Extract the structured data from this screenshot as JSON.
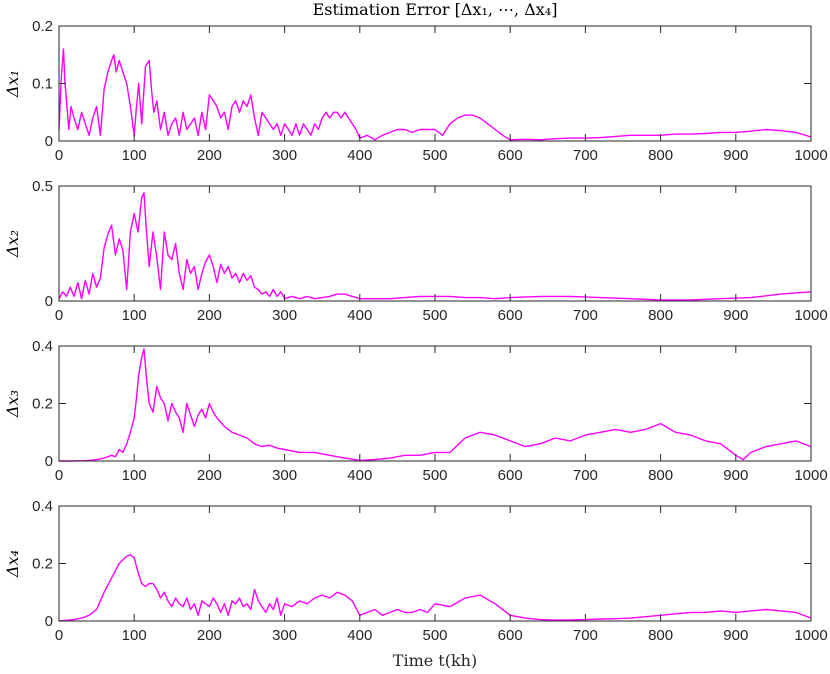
{
  "figure_title": "Estimation Error [Δx₁, ⋯, Δx₄]",
  "xlabel": "Time t(kh)",
  "colors": {
    "trace": "#ff00ff",
    "axes": "#262626",
    "background": "#ffffff"
  },
  "chart_data": [
    {
      "type": "line",
      "title": "Estimation Error [Δx₁, ⋯, Δx₄]",
      "ylabel": "Δx₁",
      "xlabel": "",
      "xlim": [
        0,
        1000
      ],
      "ylim": [
        0,
        0.2
      ],
      "xticks": [
        0,
        100,
        200,
        300,
        400,
        500,
        600,
        700,
        800,
        900,
        1000
      ],
      "yticks": [
        0,
        0.1,
        0.2
      ],
      "ytick_labels": [
        "0",
        "0.1",
        "0.2"
      ],
      "series": [
        {
          "x": [
            0,
            3,
            6,
            8,
            10,
            13,
            16,
            20,
            25,
            30,
            35,
            40,
            45,
            50,
            55,
            60,
            65,
            70,
            73,
            76,
            80,
            85,
            90,
            95,
            100,
            103,
            106,
            110,
            115,
            120,
            123,
            126,
            130,
            135,
            140,
            145,
            150,
            155,
            160,
            165,
            170,
            175,
            180,
            185,
            190,
            195,
            200,
            205,
            210,
            215,
            220,
            225,
            230,
            235,
            240,
            245,
            250,
            255,
            260,
            265,
            270,
            275,
            280,
            285,
            290,
            295,
            300,
            305,
            310,
            315,
            320,
            325,
            330,
            335,
            340,
            345,
            350,
            355,
            360,
            365,
            370,
            375,
            380,
            385,
            390,
            395,
            400,
            410,
            420,
            430,
            440,
            450,
            460,
            470,
            480,
            490,
            500,
            510,
            520,
            530,
            540,
            550,
            560,
            570,
            580,
            590,
            600,
            620,
            640,
            660,
            680,
            700,
            720,
            740,
            760,
            780,
            800,
            820,
            840,
            860,
            880,
            900,
            920,
            940,
            960,
            980,
            1000
          ],
          "y": [
            0.02,
            0.11,
            0.16,
            0.1,
            0.07,
            0.02,
            0.06,
            0.04,
            0.02,
            0.05,
            0.03,
            0.01,
            0.04,
            0.06,
            0.01,
            0.09,
            0.12,
            0.14,
            0.15,
            0.12,
            0.14,
            0.12,
            0.1,
            0.06,
            0.01,
            0.06,
            0.1,
            0.03,
            0.13,
            0.14,
            0.09,
            0.05,
            0.07,
            0.02,
            0.05,
            0.01,
            0.03,
            0.04,
            0.01,
            0.05,
            0.02,
            0.03,
            0.04,
            0.01,
            0.05,
            0.02,
            0.08,
            0.07,
            0.06,
            0.04,
            0.05,
            0.02,
            0.06,
            0.07,
            0.05,
            0.07,
            0.06,
            0.08,
            0.04,
            0.01,
            0.05,
            0.04,
            0.03,
            0.02,
            0.03,
            0.01,
            0.03,
            0.02,
            0.01,
            0.03,
            0.01,
            0.03,
            0.02,
            0.01,
            0.03,
            0.02,
            0.04,
            0.05,
            0.04,
            0.05,
            0.05,
            0.04,
            0.05,
            0.04,
            0.03,
            0.02,
            0.005,
            0.01,
            0.002,
            0.01,
            0.015,
            0.02,
            0.02,
            0.015,
            0.02,
            0.02,
            0.02,
            0.01,
            0.03,
            0.04,
            0.045,
            0.045,
            0.04,
            0.03,
            0.02,
            0.01,
            0.002,
            0.003,
            0.002,
            0.004,
            0.005,
            0.005,
            0.006,
            0.008,
            0.01,
            0.01,
            0.01,
            0.012,
            0.012,
            0.013,
            0.015,
            0.015,
            0.017,
            0.02,
            0.018,
            0.015,
            0.007
          ]
        }
      ]
    },
    {
      "type": "line",
      "title": "",
      "ylabel": "Δx₂",
      "xlabel": "",
      "xlim": [
        0,
        1000
      ],
      "ylim": [
        0,
        0.5
      ],
      "xticks": [
        0,
        100,
        200,
        300,
        400,
        500,
        600,
        700,
        800,
        900,
        1000
      ],
      "yticks": [
        0,
        0.5
      ],
      "ytick_labels": [
        "0",
        "0.5"
      ],
      "series": [
        {
          "x": [
            0,
            5,
            10,
            15,
            20,
            25,
            30,
            35,
            40,
            45,
            50,
            55,
            60,
            65,
            70,
            75,
            80,
            85,
            90,
            95,
            100,
            105,
            110,
            113,
            116,
            120,
            125,
            130,
            135,
            140,
            145,
            150,
            155,
            160,
            165,
            170,
            175,
            180,
            185,
            190,
            195,
            200,
            205,
            210,
            215,
            220,
            225,
            230,
            235,
            240,
            245,
            250,
            255,
            260,
            265,
            270,
            275,
            280,
            285,
            290,
            295,
            300,
            310,
            320,
            330,
            340,
            350,
            360,
            370,
            380,
            390,
            400,
            420,
            440,
            460,
            480,
            500,
            520,
            540,
            560,
            580,
            600,
            640,
            680,
            720,
            760,
            800,
            840,
            880,
            920,
            960,
            1000
          ],
          "y": [
            0.01,
            0.04,
            0.02,
            0.06,
            0.02,
            0.08,
            0.01,
            0.09,
            0.03,
            0.12,
            0.06,
            0.1,
            0.23,
            0.29,
            0.33,
            0.2,
            0.27,
            0.22,
            0.05,
            0.3,
            0.38,
            0.3,
            0.45,
            0.47,
            0.32,
            0.15,
            0.3,
            0.19,
            0.05,
            0.3,
            0.2,
            0.18,
            0.25,
            0.12,
            0.05,
            0.18,
            0.12,
            0.15,
            0.05,
            0.12,
            0.17,
            0.2,
            0.15,
            0.08,
            0.16,
            0.12,
            0.15,
            0.1,
            0.12,
            0.08,
            0.12,
            0.09,
            0.11,
            0.06,
            0.05,
            0.03,
            0.04,
            0.02,
            0.05,
            0.02,
            0.04,
            0.01,
            0.02,
            0.01,
            0.02,
            0.01,
            0.015,
            0.02,
            0.03,
            0.03,
            0.02,
            0.01,
            0.01,
            0.01,
            0.015,
            0.02,
            0.02,
            0.02,
            0.015,
            0.015,
            0.01,
            0.015,
            0.02,
            0.02,
            0.015,
            0.01,
            0.005,
            0.005,
            0.01,
            0.015,
            0.03,
            0.04
          ]
        }
      ]
    },
    {
      "type": "line",
      "title": "",
      "ylabel": "Δx₃",
      "xlabel": "",
      "xlim": [
        0,
        1000
      ],
      "ylim": [
        0,
        0.4
      ],
      "xticks": [
        0,
        100,
        200,
        300,
        400,
        500,
        600,
        700,
        800,
        900,
        1000
      ],
      "yticks": [
        0,
        0.2,
        0.4
      ],
      "ytick_labels": [
        "0",
        "0.2",
        "0.4"
      ],
      "series": [
        {
          "x": [
            0,
            20,
            40,
            50,
            60,
            70,
            75,
            80,
            85,
            90,
            95,
            100,
            103,
            106,
            110,
            113,
            116,
            120,
            125,
            130,
            135,
            140,
            145,
            150,
            155,
            160,
            165,
            170,
            175,
            180,
            185,
            190,
            195,
            200,
            205,
            210,
            220,
            230,
            240,
            250,
            260,
            270,
            280,
            290,
            300,
            320,
            340,
            360,
            380,
            400,
            420,
            440,
            460,
            480,
            500,
            520,
            540,
            560,
            580,
            600,
            620,
            640,
            660,
            680,
            700,
            720,
            740,
            760,
            780,
            800,
            820,
            840,
            860,
            880,
            900,
            910,
            920,
            940,
            960,
            980,
            1000
          ],
          "y": [
            0,
            0,
            0.002,
            0.005,
            0.01,
            0.02,
            0.015,
            0.04,
            0.03,
            0.06,
            0.1,
            0.15,
            0.22,
            0.3,
            0.36,
            0.39,
            0.3,
            0.2,
            0.17,
            0.26,
            0.22,
            0.2,
            0.14,
            0.2,
            0.17,
            0.15,
            0.1,
            0.2,
            0.16,
            0.12,
            0.16,
            0.18,
            0.15,
            0.2,
            0.17,
            0.15,
            0.12,
            0.1,
            0.09,
            0.08,
            0.06,
            0.05,
            0.055,
            0.045,
            0.04,
            0.03,
            0.03,
            0.02,
            0.01,
            0.002,
            0.005,
            0.01,
            0.02,
            0.02,
            0.03,
            0.03,
            0.08,
            0.1,
            0.09,
            0.07,
            0.05,
            0.06,
            0.08,
            0.07,
            0.09,
            0.1,
            0.11,
            0.1,
            0.11,
            0.13,
            0.1,
            0.09,
            0.07,
            0.06,
            0.02,
            0.005,
            0.03,
            0.05,
            0.06,
            0.07,
            0.05
          ]
        }
      ]
    },
    {
      "type": "line",
      "title": "",
      "ylabel": "Δx₄",
      "xlabel": "Time t(kh)",
      "xlim": [
        0,
        1000
      ],
      "ylim": [
        0,
        0.4
      ],
      "xticks": [
        0,
        100,
        200,
        300,
        400,
        500,
        600,
        700,
        800,
        900,
        1000
      ],
      "yticks": [
        0,
        0.2,
        0.4
      ],
      "ytick_labels": [
        "0",
        "0.2",
        "0.4"
      ],
      "series": [
        {
          "x": [
            0,
            20,
            30,
            40,
            50,
            60,
            70,
            80,
            90,
            95,
            100,
            105,
            110,
            115,
            120,
            125,
            130,
            135,
            140,
            145,
            150,
            155,
            160,
            165,
            170,
            175,
            180,
            185,
            190,
            195,
            200,
            205,
            210,
            215,
            220,
            225,
            230,
            235,
            240,
            245,
            250,
            255,
            260,
            265,
            270,
            275,
            280,
            285,
            290,
            295,
            300,
            310,
            320,
            330,
            340,
            350,
            360,
            370,
            380,
            390,
            400,
            410,
            420,
            430,
            440,
            450,
            460,
            470,
            480,
            490,
            500,
            520,
            540,
            560,
            580,
            600,
            620,
            640,
            660,
            680,
            700,
            720,
            740,
            760,
            780,
            800,
            820,
            840,
            860,
            880,
            900,
            920,
            940,
            960,
            980,
            1000
          ],
          "y": [
            0,
            0.005,
            0.01,
            0.02,
            0.04,
            0.1,
            0.15,
            0.2,
            0.225,
            0.23,
            0.22,
            0.17,
            0.13,
            0.12,
            0.13,
            0.13,
            0.11,
            0.08,
            0.1,
            0.07,
            0.05,
            0.08,
            0.06,
            0.05,
            0.08,
            0.04,
            0.06,
            0.02,
            0.07,
            0.06,
            0.05,
            0.08,
            0.06,
            0.03,
            0.06,
            0.02,
            0.07,
            0.06,
            0.08,
            0.05,
            0.06,
            0.04,
            0.11,
            0.07,
            0.05,
            0.03,
            0.06,
            0.04,
            0.08,
            0.02,
            0.06,
            0.05,
            0.07,
            0.06,
            0.08,
            0.09,
            0.08,
            0.1,
            0.09,
            0.07,
            0.02,
            0.03,
            0.04,
            0.02,
            0.03,
            0.04,
            0.03,
            0.03,
            0.04,
            0.03,
            0.06,
            0.05,
            0.08,
            0.09,
            0.06,
            0.02,
            0.01,
            0.005,
            0.003,
            0.004,
            0.005,
            0.007,
            0.008,
            0.01,
            0.015,
            0.02,
            0.025,
            0.03,
            0.03,
            0.035,
            0.03,
            0.035,
            0.04,
            0.035,
            0.03,
            0.01
          ]
        }
      ]
    }
  ]
}
